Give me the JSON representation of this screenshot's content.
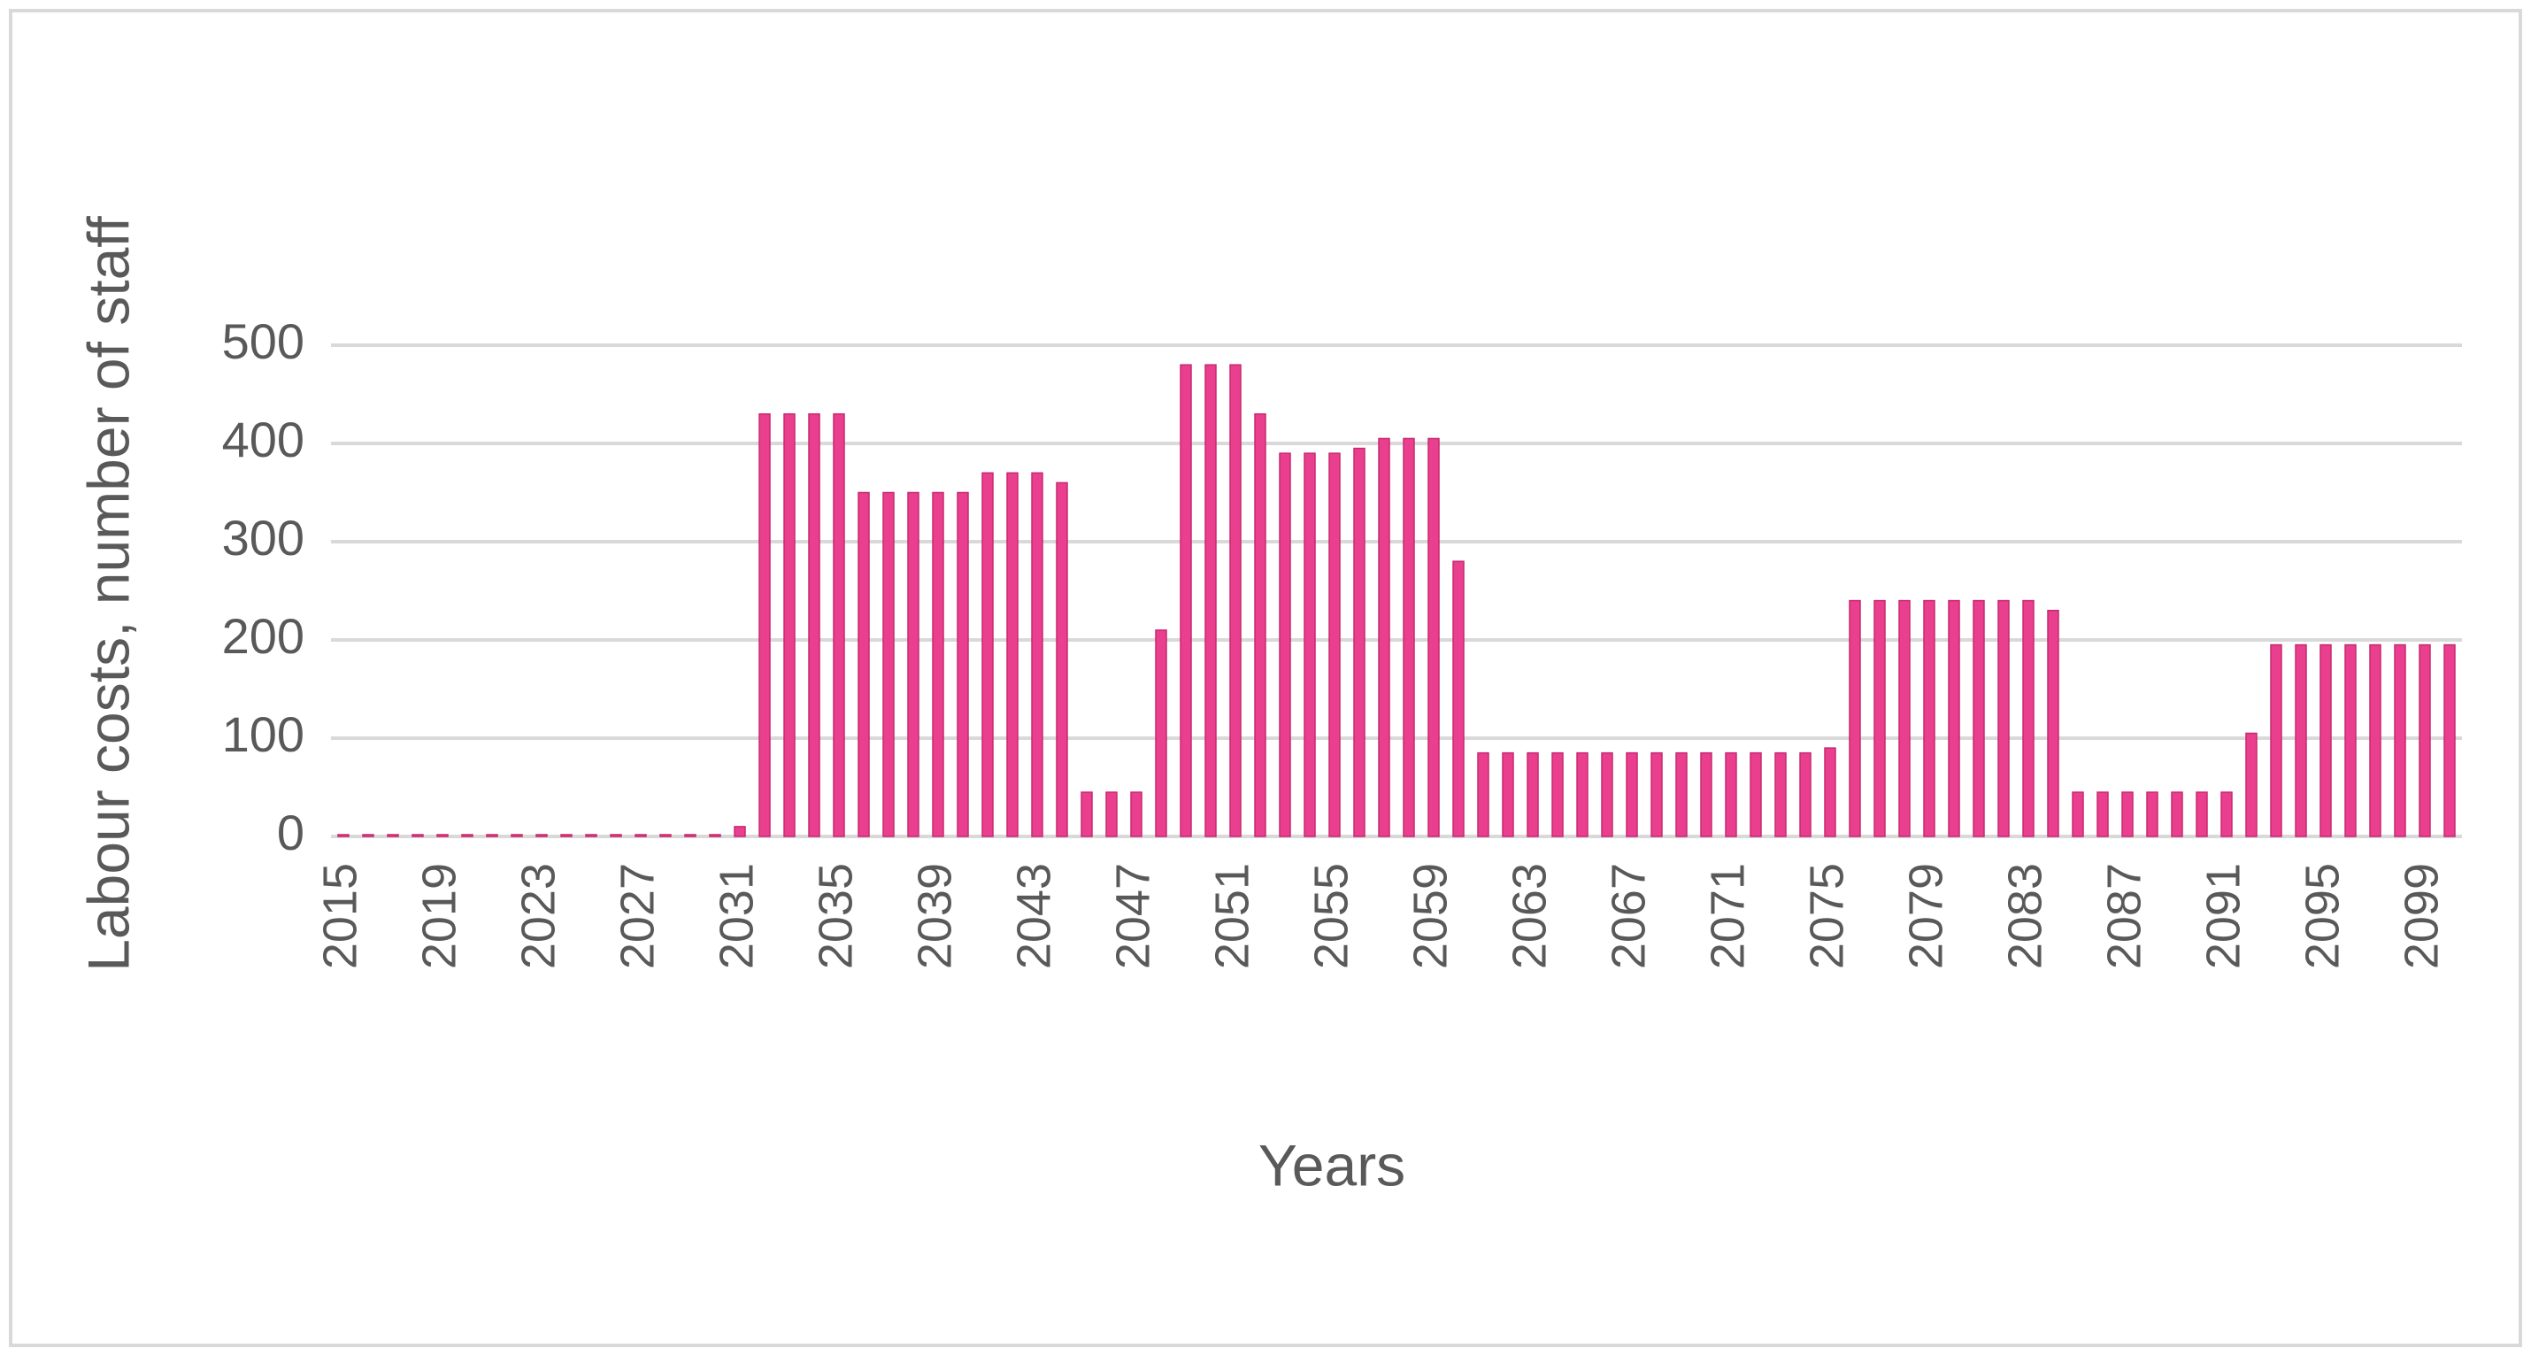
{
  "chart_data": {
    "type": "bar",
    "y_label": "Labour costs, number of staff",
    "x_label": "Years",
    "categories": [
      "2015",
      null,
      null,
      null,
      "2019",
      null,
      null,
      null,
      "2023",
      null,
      null,
      null,
      "2027",
      null,
      null,
      null,
      "2031",
      null,
      null,
      null,
      "2035",
      null,
      null,
      null,
      "2039",
      null,
      null,
      null,
      "2043",
      null,
      null,
      null,
      "2047",
      null,
      null,
      null,
      "2051",
      null,
      null,
      null,
      "2055",
      null,
      null,
      null,
      "2059",
      null,
      null,
      null,
      "2063",
      null,
      null,
      null,
      "2067",
      null,
      null,
      null,
      "2071",
      null,
      null,
      null,
      "2075",
      null,
      null,
      null,
      "2079",
      null,
      null,
      null,
      "2083",
      null,
      null,
      null,
      "2087",
      null,
      null,
      null,
      "2091",
      null,
      null,
      null,
      "2095",
      null,
      null,
      null,
      "2099",
      null
    ],
    "values": [
      0,
      0,
      0,
      0,
      0,
      0,
      0,
      0,
      0,
      0,
      0,
      0,
      0,
      0,
      0,
      0,
      10,
      430,
      430,
      430,
      430,
      350,
      350,
      350,
      350,
      350,
      370,
      370,
      370,
      360,
      45,
      45,
      45,
      210,
      480,
      480,
      480,
      430,
      390,
      390,
      390,
      395,
      405,
      405,
      405,
      280,
      85,
      85,
      85,
      85,
      85,
      85,
      85,
      85,
      85,
      85,
      85,
      85,
      85,
      85,
      90,
      240,
      240,
      240,
      240,
      240,
      240,
      240,
      240,
      230,
      45,
      45,
      45,
      45,
      45,
      45,
      45,
      105,
      195,
      195,
      195,
      195,
      195,
      195,
      195,
      195
    ],
    "color": "#ea3f8f",
    "ylim": [
      0,
      500
    ],
    "yticks": [
      0,
      100,
      200,
      300,
      400,
      500
    ],
    "grid": true
  }
}
